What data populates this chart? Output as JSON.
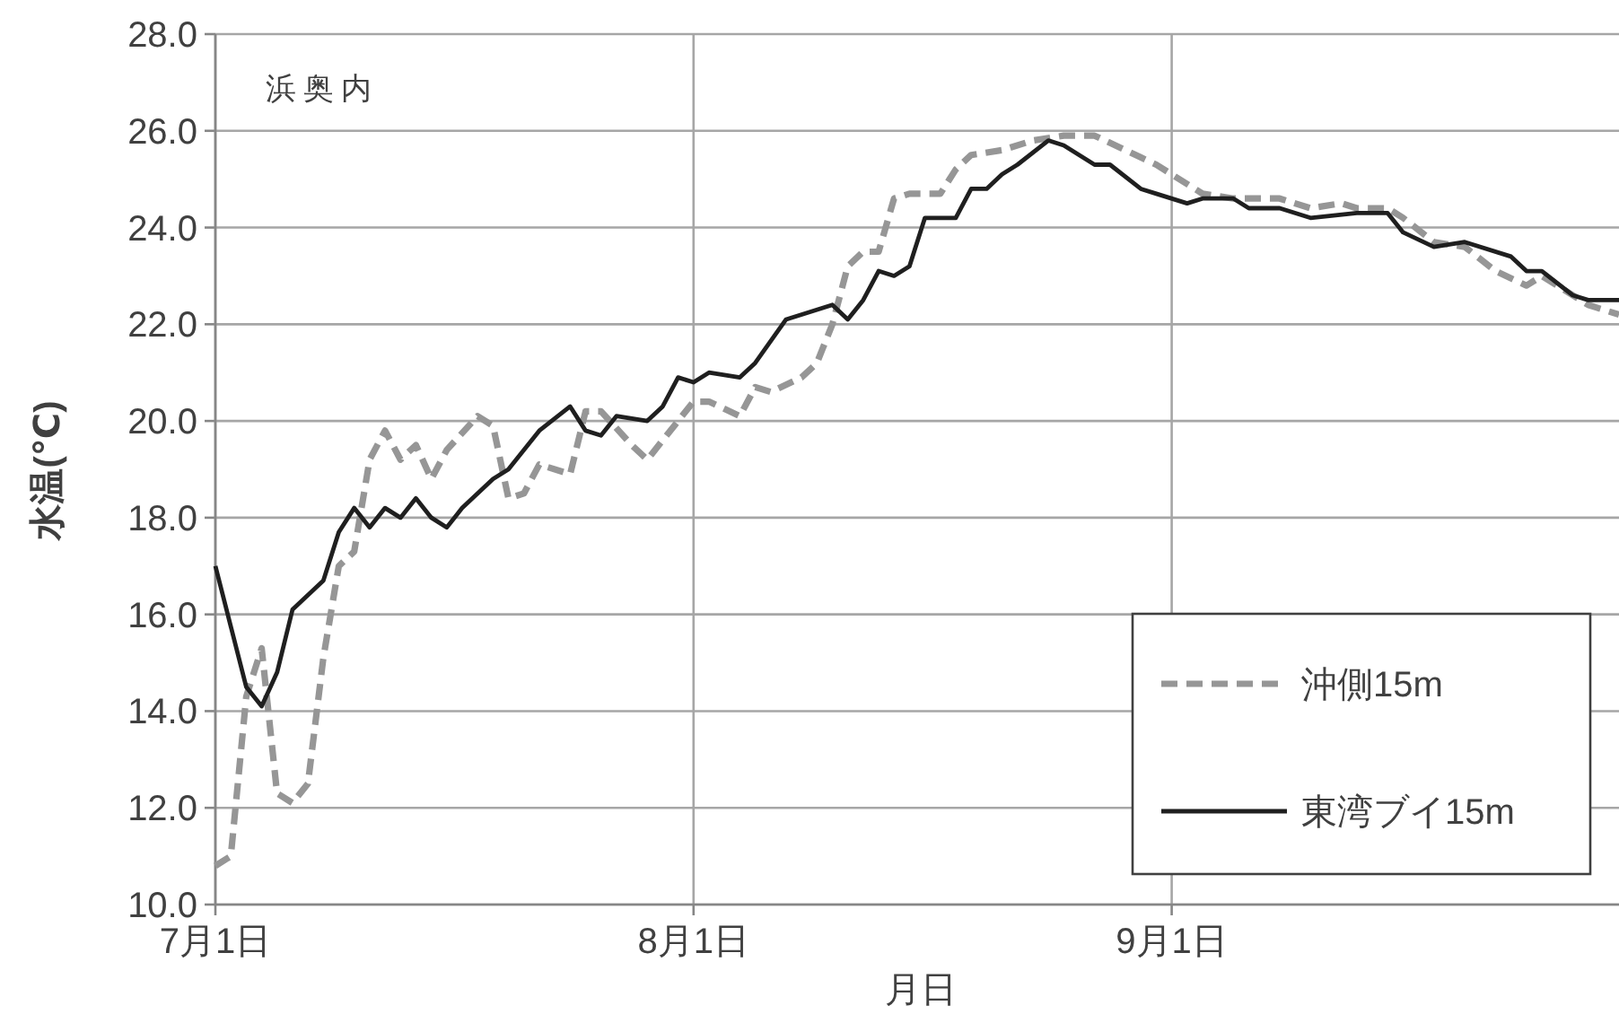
{
  "chart_data": {
    "type": "line",
    "title": "浜奥内",
    "xlabel": "月日",
    "ylabel": "水温(℃)",
    "xlim": [
      "--07-01",
      "--09-30"
    ],
    "xticks": [
      {
        "value": "--07-01",
        "label": "7月1日"
      },
      {
        "value": "--08-01",
        "label": "8月1日"
      },
      {
        "value": "--09-01",
        "label": "9月1日"
      }
    ],
    "ylim": [
      10,
      28
    ],
    "yticks": [
      {
        "value": 10,
        "label": "10.0"
      },
      {
        "value": 12,
        "label": "12.0"
      },
      {
        "value": 14,
        "label": "14.0"
      },
      {
        "value": 16,
        "label": "16.0"
      },
      {
        "value": 18,
        "label": "18.0"
      },
      {
        "value": 20,
        "label": "20.0"
      },
      {
        "value": 22,
        "label": "22.0"
      },
      {
        "value": 24,
        "label": "24.0"
      },
      {
        "value": 26,
        "label": "26.0"
      },
      {
        "value": 28,
        "label": "28.0"
      }
    ],
    "grid": true,
    "legend": "bottom right",
    "marker": "none",
    "series": [
      {
        "name": "沖側15m",
        "color": "#969696",
        "line_style": "dashed",
        "x": [
          "--07-01",
          "--07-02",
          "--07-03",
          "--07-04",
          "--07-05",
          "--07-06",
          "--07-07",
          "--07-08",
          "--07-09",
          "--07-10",
          "--07-11",
          "--07-12",
          "--07-13",
          "--07-14",
          "--07-15",
          "--07-16",
          "--07-18",
          "--07-19",
          "--07-20",
          "--07-21",
          "--07-22",
          "--07-24",
          "--07-25",
          "--07-26",
          "--07-28",
          "--07-29",
          "--07-30",
          "--08-01",
          "--08-02",
          "--08-04",
          "--08-05",
          "--08-06",
          "--08-08",
          "--08-09",
          "--08-10",
          "--08-11",
          "--08-12",
          "--08-13",
          "--08-14",
          "--08-15",
          "--08-17",
          "--08-18",
          "--08-19",
          "--08-21",
          "--08-23",
          "--08-25",
          "--08-27",
          "--08-29",
          "--08-31",
          "--09-01",
          "--09-03",
          "--09-05",
          "--09-08",
          "--09-10",
          "--09-12",
          "--09-13",
          "--09-15",
          "--09-16",
          "--09-18",
          "--09-20",
          "--09-22",
          "--09-24",
          "--09-25",
          "--09-27",
          "--09-28",
          "--09-30"
        ],
        "values": [
          10.8,
          11.0,
          14.3,
          15.3,
          12.3,
          12.1,
          12.5,
          15.1,
          17.0,
          17.3,
          19.2,
          19.8,
          19.2,
          19.5,
          18.8,
          19.4,
          20.1,
          19.9,
          18.4,
          18.5,
          19.1,
          18.9,
          20.2,
          20.2,
          19.5,
          19.2,
          19.6,
          20.4,
          20.4,
          20.1,
          20.7,
          20.6,
          20.9,
          21.2,
          22.0,
          23.2,
          23.5,
          23.5,
          24.6,
          24.7,
          24.7,
          25.2,
          25.5,
          25.6,
          25.8,
          25.9,
          25.9,
          25.6,
          25.3,
          25.1,
          24.7,
          24.6,
          24.6,
          24.4,
          24.5,
          24.4,
          24.4,
          24.2,
          23.7,
          23.6,
          23.1,
          22.8,
          23.0,
          22.6,
          22.4,
          22.2
        ]
      },
      {
        "name": "東湾ブイ15m",
        "color": "#1f1f1f",
        "line_style": "solid",
        "x": [
          "--07-01",
          "--07-03",
          "--07-04",
          "--07-05",
          "--07-06",
          "--07-08",
          "--07-09",
          "--07-10",
          "--07-11",
          "--07-12",
          "--07-13",
          "--07-14",
          "--07-15",
          "--07-16",
          "--07-17",
          "--07-19",
          "--07-20",
          "--07-22",
          "--07-24",
          "--07-25",
          "--07-26",
          "--07-27",
          "--07-29",
          "--07-30",
          "--07-31",
          "--08-01",
          "--08-02",
          "--08-04",
          "--08-05",
          "--08-07",
          "--08-10",
          "--08-11",
          "--08-12",
          "--08-13",
          "--08-14",
          "--08-15",
          "--08-16",
          "--08-18",
          "--08-19",
          "--08-20",
          "--08-21",
          "--08-22",
          "--08-24",
          "--08-25",
          "--08-27",
          "--08-28",
          "--08-30",
          "--08-31",
          "--09-02",
          "--09-03",
          "--09-05",
          "--09-06",
          "--09-08",
          "--09-10",
          "--09-13",
          "--09-15",
          "--09-16",
          "--09-18",
          "--09-20",
          "--09-23",
          "--09-24",
          "--09-25",
          "--09-27",
          "--09-28",
          "--09-30"
        ],
        "values": [
          17.0,
          14.5,
          14.1,
          14.8,
          16.1,
          16.7,
          17.7,
          18.2,
          17.8,
          18.2,
          18.0,
          18.4,
          18.0,
          17.8,
          18.2,
          18.8,
          19.0,
          19.8,
          20.3,
          19.8,
          19.7,
          20.1,
          20.0,
          20.3,
          20.9,
          20.8,
          21.0,
          20.9,
          21.2,
          22.1,
          22.4,
          22.1,
          22.5,
          23.1,
          23.0,
          23.2,
          24.2,
          24.2,
          24.8,
          24.8,
          25.1,
          25.3,
          25.8,
          25.7,
          25.3,
          25.3,
          24.8,
          24.7,
          24.5,
          24.6,
          24.6,
          24.4,
          24.4,
          24.2,
          24.3,
          24.3,
          23.9,
          23.6,
          23.7,
          23.4,
          23.1,
          23.1,
          22.6,
          22.5,
          22.5
        ]
      }
    ]
  }
}
